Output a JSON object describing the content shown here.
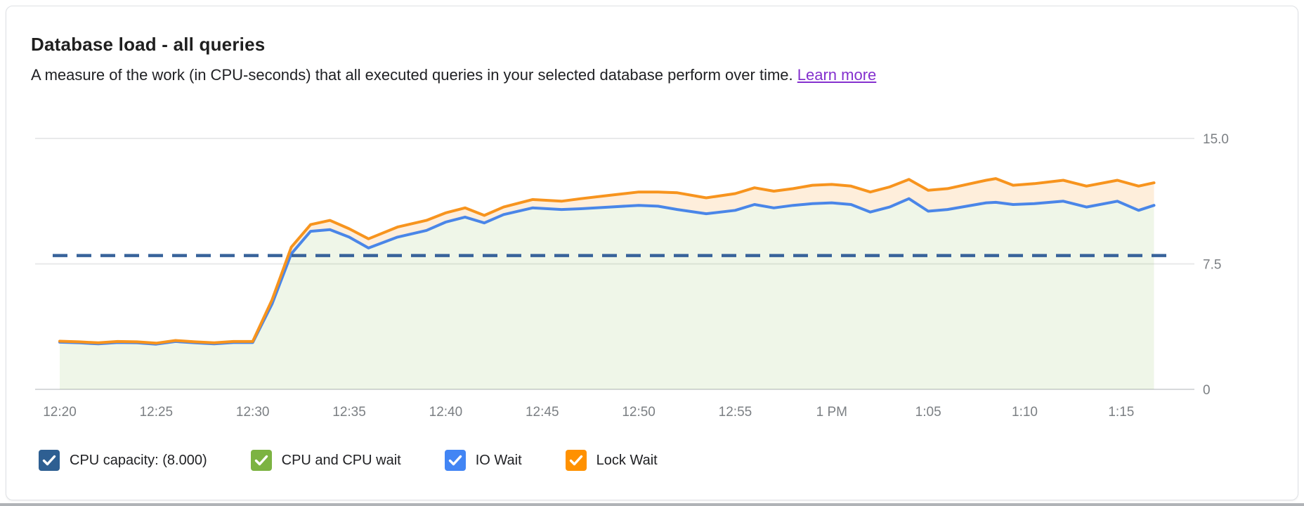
{
  "card": {
    "title": "Database load - all queries",
    "description": "A measure of the work (in CPU-seconds) that all executed queries in your selected database perform over time.",
    "learn_more_label": "Learn more"
  },
  "chart_data": {
    "type": "area",
    "title": "Database load - all queries",
    "unit": "CPU-seconds",
    "stacking": "cumulative",
    "grid": "horizontal-only",
    "ylim": [
      0,
      15
    ],
    "y_ticks": [
      {
        "label": "15.0",
        "value": 15
      },
      {
        "label": "7.5",
        "value": 7.5
      },
      {
        "label": "0",
        "value": 0
      }
    ],
    "x_tick_labels": [
      "12:20",
      "12:25",
      "12:30",
      "12:35",
      "12:40",
      "12:45",
      "12:50",
      "12:55",
      "1 PM",
      "1:05",
      "1:10",
      "1:15"
    ],
    "x_tick_minutes": [
      0,
      5,
      10,
      15,
      20,
      25,
      30,
      35,
      40,
      45,
      50,
      55
    ],
    "x_range_minutes": [
      0,
      56.7
    ],
    "capacity_line": {
      "label": "CPU capacity: (8.000)",
      "value": 8.0,
      "color": "#38639a",
      "style": "dashed"
    },
    "t_minutes": [
      0,
      1,
      2,
      3,
      4,
      5,
      6,
      7,
      8,
      9,
      10,
      11,
      12,
      13,
      14,
      15,
      16,
      17.5,
      19,
      20,
      21,
      22,
      23,
      24.5,
      26,
      27,
      28.5,
      30,
      31,
      32,
      33.5,
      35,
      36,
      37,
      38,
      39,
      40,
      41,
      42,
      43,
      44,
      45,
      46,
      48,
      48.5,
      49.4,
      50.5,
      52,
      53.2,
      54.8,
      55.9,
      56.7
    ],
    "series": [
      {
        "name": "CPU and CPU wait",
        "color": "#7cb342",
        "fill": "rgba(124,179,66,0.12)",
        "note": "area top coincides with IO Wait line (IO wait contribution ~0)"
      },
      {
        "name": "IO Wait",
        "color": "#4a86e8",
        "fill": "rgba(124,179,66,0.12)",
        "values": [
          2.82,
          2.78,
          2.72,
          2.8,
          2.78,
          2.7,
          2.86,
          2.78,
          2.72,
          2.8,
          2.8,
          5.1,
          8.1,
          9.45,
          9.55,
          9.1,
          8.45,
          9.1,
          9.5,
          10.0,
          10.3,
          9.95,
          10.45,
          10.85,
          10.75,
          10.8,
          10.9,
          11.0,
          10.95,
          10.75,
          10.5,
          10.7,
          11.05,
          10.85,
          11.0,
          11.1,
          11.15,
          11.05,
          10.6,
          10.9,
          11.4,
          10.65,
          10.75,
          11.15,
          11.18,
          11.05,
          11.1,
          11.25,
          10.9,
          11.25,
          10.7,
          11.0
        ]
      },
      {
        "name": "Lock Wait",
        "color": "#f7941e",
        "fill": "rgba(247,148,30,0.16)",
        "values": [
          2.88,
          2.84,
          2.78,
          2.86,
          2.84,
          2.76,
          2.92,
          2.84,
          2.78,
          2.86,
          2.86,
          5.35,
          8.5,
          9.85,
          10.1,
          9.6,
          9.0,
          9.7,
          10.1,
          10.55,
          10.85,
          10.4,
          10.9,
          11.35,
          11.25,
          11.4,
          11.6,
          11.8,
          11.8,
          11.75,
          11.45,
          11.7,
          12.05,
          11.85,
          12.0,
          12.2,
          12.25,
          12.15,
          11.8,
          12.1,
          12.55,
          11.9,
          12.0,
          12.5,
          12.6,
          12.2,
          12.3,
          12.5,
          12.15,
          12.5,
          12.15,
          12.35
        ]
      }
    ],
    "legend": [
      {
        "label": "CPU capacity: (8.000)",
        "color": "#2e5f92",
        "checked": true
      },
      {
        "label": "CPU and CPU wait",
        "color": "#7cb342",
        "checked": true
      },
      {
        "label": "IO Wait",
        "color": "#4285f4",
        "checked": true
      },
      {
        "label": "Lock Wait",
        "color": "#ff9100",
        "checked": true
      }
    ]
  }
}
